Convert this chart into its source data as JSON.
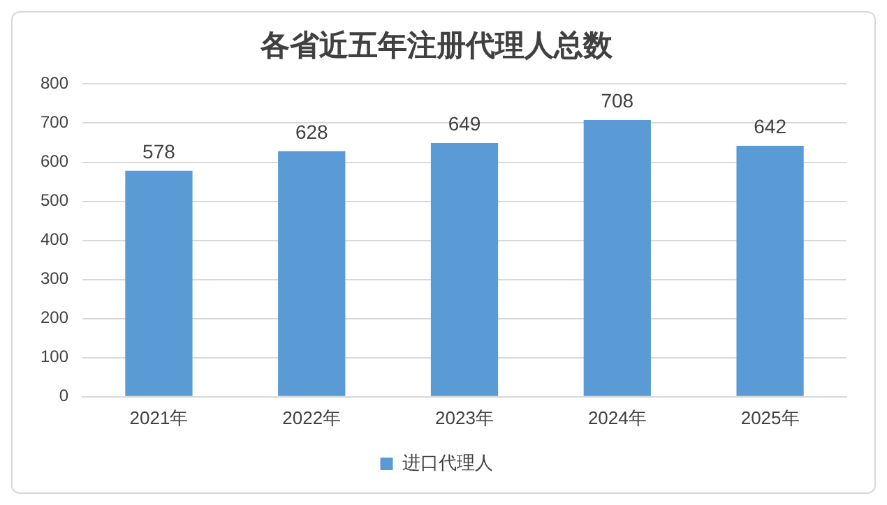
{
  "chart_data": {
    "type": "bar",
    "title": "各省近五年注册代理人总数",
    "categories": [
      "2021年",
      "2022年",
      "2023年",
      "2024年",
      "2025年"
    ],
    "series": [
      {
        "name": "进口代理人",
        "color": "#5b9bd5",
        "values": [
          578,
          628,
          649,
          708,
          642
        ]
      }
    ],
    "ylim": [
      0,
      800
    ],
    "yticks": [
      0,
      100,
      200,
      300,
      400,
      500,
      600,
      700,
      800
    ],
    "grid": "y",
    "legend": "bottom",
    "data_labels": true
  }
}
